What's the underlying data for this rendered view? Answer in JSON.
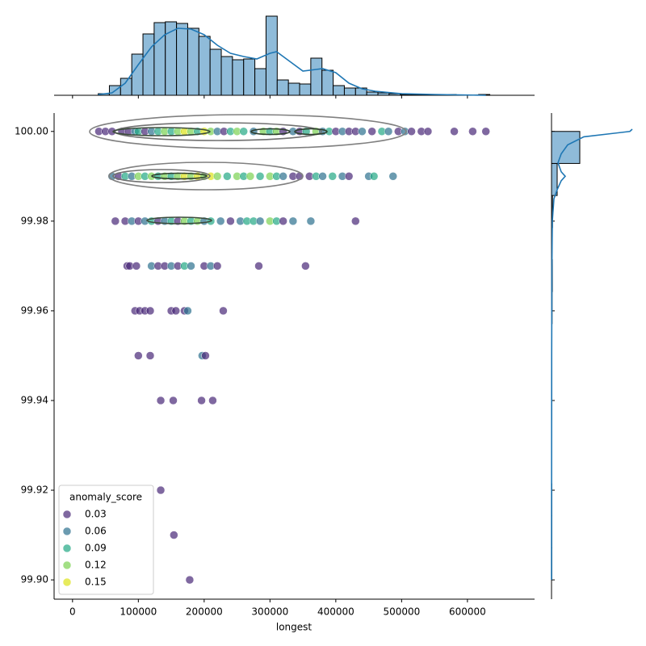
{
  "chart_data": [
    {
      "type": "scatter",
      "x_label": "longest",
      "xlim": [
        -28000,
        702000
      ],
      "xticks": [
        0,
        100000,
        200000,
        300000,
        400000,
        500000,
        600000
      ],
      "ylim": [
        99.8957,
        100.0041
      ],
      "yticks": [
        {
          "value": 99.9,
          "label": "99.90"
        },
        {
          "value": 99.92,
          "label": "99.92"
        },
        {
          "value": 99.94,
          "label": "99.94"
        },
        {
          "value": 99.96,
          "label": "99.96"
        },
        {
          "value": 99.98,
          "label": "99.98"
        },
        {
          "value": 100.0,
          "label": "100.00"
        }
      ],
      "legend": {
        "title": "anomaly_score",
        "corner": "lower left",
        "entries": [
          {
            "value": 0.03,
            "label": "0.03",
            "color": "#482878"
          },
          {
            "value": 0.06,
            "label": "0.06",
            "color": "#2c718e"
          },
          {
            "value": 0.09,
            "label": "0.09",
            "color": "#22a884"
          },
          {
            "value": 0.12,
            "label": "0.12",
            "color": "#7ad151"
          },
          {
            "value": 0.15,
            "label": "0.15",
            "color": "#dde318"
          }
        ]
      },
      "points": [
        [
          40000,
          100.0,
          0.02
        ],
        [
          50000,
          100.0,
          0.02
        ],
        [
          60000,
          100.0,
          0.03
        ],
        [
          75000,
          100.0,
          0.03
        ],
        [
          85000,
          100.0,
          0.02
        ],
        [
          95000,
          100.0,
          0.06
        ],
        [
          100000,
          100.0,
          0.09
        ],
        [
          110000,
          100.0,
          0.03
        ],
        [
          120000,
          100.0,
          0.06
        ],
        [
          130000,
          100.0,
          0.09
        ],
        [
          140000,
          100.0,
          0.12
        ],
        [
          150000,
          100.0,
          0.09
        ],
        [
          160000,
          100.0,
          0.12
        ],
        [
          170000,
          100.0,
          0.15
        ],
        [
          180000,
          100.0,
          0.12
        ],
        [
          190000,
          100.0,
          0.09
        ],
        [
          200000,
          100.0,
          0.15
        ],
        [
          210000,
          100.0,
          0.12
        ],
        [
          220000,
          100.0,
          0.06
        ],
        [
          230000,
          100.0,
          0.03
        ],
        [
          240000,
          100.0,
          0.09
        ],
        [
          250000,
          100.0,
          0.12
        ],
        [
          260000,
          100.0,
          0.09
        ],
        [
          275000,
          100.0,
          0.06
        ],
        [
          290000,
          100.0,
          0.12
        ],
        [
          300000,
          100.0,
          0.09
        ],
        [
          310000,
          100.0,
          0.12
        ],
        [
          320000,
          100.0,
          0.03
        ],
        [
          335000,
          100.0,
          0.06
        ],
        [
          345000,
          100.0,
          0.02
        ],
        [
          355000,
          100.0,
          0.09
        ],
        [
          370000,
          100.0,
          0.12
        ],
        [
          380000,
          100.0,
          0.06
        ],
        [
          390000,
          100.0,
          0.09
        ],
        [
          400000,
          100.0,
          0.03
        ],
        [
          410000,
          100.0,
          0.06
        ],
        [
          420000,
          100.0,
          0.02
        ],
        [
          430000,
          100.0,
          0.03
        ],
        [
          440000,
          100.0,
          0.06
        ],
        [
          455000,
          100.0,
          0.03
        ],
        [
          470000,
          100.0,
          0.09
        ],
        [
          480000,
          100.0,
          0.06
        ],
        [
          495000,
          100.0,
          0.03
        ],
        [
          505000,
          100.0,
          0.06
        ],
        [
          515000,
          100.0,
          0.03
        ],
        [
          530000,
          100.0,
          0.03
        ],
        [
          540000,
          100.0,
          0.03
        ],
        [
          580000,
          100.0,
          0.03
        ],
        [
          608000,
          100.0,
          0.03
        ],
        [
          628000,
          100.0,
          0.02
        ],
        [
          60000,
          99.99,
          0.06
        ],
        [
          70000,
          99.99,
          0.03
        ],
        [
          80000,
          99.99,
          0.09
        ],
        [
          90000,
          99.99,
          0.06
        ],
        [
          100000,
          99.99,
          0.12
        ],
        [
          110000,
          99.99,
          0.09
        ],
        [
          120000,
          99.99,
          0.12
        ],
        [
          130000,
          99.99,
          0.09
        ],
        [
          140000,
          99.99,
          0.12
        ],
        [
          150000,
          99.99,
          0.09
        ],
        [
          160000,
          99.99,
          0.12
        ],
        [
          170000,
          99.99,
          0.15
        ],
        [
          180000,
          99.99,
          0.12
        ],
        [
          190000,
          99.99,
          0.15
        ],
        [
          200000,
          99.99,
          0.12
        ],
        [
          210000,
          99.99,
          0.15
        ],
        [
          220000,
          99.99,
          0.12
        ],
        [
          235000,
          99.99,
          0.09
        ],
        [
          250000,
          99.99,
          0.12
        ],
        [
          260000,
          99.99,
          0.09
        ],
        [
          270000,
          99.99,
          0.12
        ],
        [
          285000,
          99.99,
          0.09
        ],
        [
          300000,
          99.99,
          0.12
        ],
        [
          310000,
          99.99,
          0.09
        ],
        [
          320000,
          99.99,
          0.06
        ],
        [
          335000,
          99.99,
          0.03
        ],
        [
          345000,
          99.99,
          0.02
        ],
        [
          360000,
          99.99,
          0.03
        ],
        [
          370000,
          99.99,
          0.09
        ],
        [
          380000,
          99.99,
          0.06
        ],
        [
          395000,
          99.99,
          0.09
        ],
        [
          410000,
          99.99,
          0.06
        ],
        [
          420000,
          99.99,
          0.03
        ],
        [
          450000,
          99.99,
          0.06
        ],
        [
          458000,
          99.99,
          0.09
        ],
        [
          487000,
          99.99,
          0.06
        ],
        [
          65000,
          99.98,
          0.03
        ],
        [
          80000,
          99.98,
          0.03
        ],
        [
          90000,
          99.98,
          0.06
        ],
        [
          100000,
          99.98,
          0.03
        ],
        [
          110000,
          99.98,
          0.06
        ],
        [
          120000,
          99.98,
          0.09
        ],
        [
          130000,
          99.98,
          0.03
        ],
        [
          140000,
          99.98,
          0.06
        ],
        [
          150000,
          99.98,
          0.09
        ],
        [
          160000,
          99.98,
          0.02
        ],
        [
          170000,
          99.98,
          0.12
        ],
        [
          180000,
          99.98,
          0.09
        ],
        [
          190000,
          99.98,
          0.12
        ],
        [
          200000,
          99.98,
          0.06
        ],
        [
          210000,
          99.98,
          0.09
        ],
        [
          225000,
          99.98,
          0.06
        ],
        [
          240000,
          99.98,
          0.03
        ],
        [
          255000,
          99.98,
          0.06
        ],
        [
          265000,
          99.98,
          0.09
        ],
        [
          275000,
          99.98,
          0.09
        ],
        [
          285000,
          99.98,
          0.06
        ],
        [
          300000,
          99.98,
          0.12
        ],
        [
          310000,
          99.98,
          0.09
        ],
        [
          320000,
          99.98,
          0.03
        ],
        [
          335000,
          99.98,
          0.06
        ],
        [
          362000,
          99.98,
          0.06
        ],
        [
          430000,
          99.98,
          0.03
        ],
        [
          83000,
          99.97,
          0.02
        ],
        [
          87000,
          99.97,
          0.03
        ],
        [
          97000,
          99.97,
          0.03
        ],
        [
          120000,
          99.97,
          0.06
        ],
        [
          130000,
          99.97,
          0.03
        ],
        [
          140000,
          99.97,
          0.03
        ],
        [
          150000,
          99.97,
          0.06
        ],
        [
          160000,
          99.97,
          0.03
        ],
        [
          170000,
          99.97,
          0.09
        ],
        [
          180000,
          99.97,
          0.06
        ],
        [
          200000,
          99.97,
          0.03
        ],
        [
          210000,
          99.97,
          0.06
        ],
        [
          220000,
          99.97,
          0.02
        ],
        [
          283000,
          99.97,
          0.03
        ],
        [
          354000,
          99.97,
          0.03
        ],
        [
          95000,
          99.96,
          0.03
        ],
        [
          102000,
          99.96,
          0.02
        ],
        [
          110000,
          99.96,
          0.03
        ],
        [
          118000,
          99.96,
          0.03
        ],
        [
          150000,
          99.96,
          0.03
        ],
        [
          157000,
          99.96,
          0.02
        ],
        [
          170000,
          99.96,
          0.03
        ],
        [
          175000,
          99.96,
          0.06
        ],
        [
          229000,
          99.96,
          0.03
        ],
        [
          100000,
          99.95,
          0.03
        ],
        [
          118000,
          99.95,
          0.03
        ],
        [
          197000,
          99.95,
          0.06
        ],
        [
          202000,
          99.95,
          0.03
        ],
        [
          134000,
          99.94,
          0.03
        ],
        [
          153000,
          99.94,
          0.03
        ],
        [
          196000,
          99.94,
          0.03
        ],
        [
          213000,
          99.94,
          0.03
        ],
        [
          134000,
          99.92,
          0.03
        ],
        [
          154000,
          99.91,
          0.03
        ],
        [
          178000,
          99.9,
          0.03
        ]
      ]
    },
    {
      "type": "histogram",
      "orientation": "vertical",
      "color": "#8fbbd9",
      "edgecolor": "#000000",
      "kde_color": "#1f77b4",
      "ylim": [
        0,
        110
      ],
      "bins": [
        39000,
        56000,
        73000,
        90000,
        107000,
        124000,
        141000,
        158000,
        175000,
        192000,
        209000,
        226000,
        243000,
        260000,
        277000,
        294000,
        311000,
        328000,
        345000,
        362000,
        379000,
        396000,
        413000,
        430000,
        447000,
        464000,
        481000,
        498000,
        515000,
        532000,
        549000,
        566000,
        583000,
        600000,
        617000,
        634000
      ],
      "counts": [
        2,
        12,
        21,
        51,
        76,
        90,
        91,
        89,
        83,
        73,
        57,
        48,
        44,
        45,
        33,
        98,
        19,
        15,
        14,
        46,
        31,
        12,
        9,
        9,
        4,
        3,
        2,
        1,
        1,
        1,
        0.5,
        1,
        0.5,
        0.5,
        1
      ],
      "kde": {
        "position": [
          39000,
          60000,
          80000,
          100000,
          120000,
          140000,
          160000,
          180000,
          200000,
          220000,
          240000,
          260000,
          280000,
          300000,
          310000,
          330000,
          350000,
          370000,
          380000,
          400000,
          420000,
          440000,
          460000,
          500000,
          550000,
          628000
        ],
        "density": [
          1,
          3,
          15,
          38,
          60,
          75,
          83,
          82,
          75,
          62,
          52,
          48,
          45,
          52,
          54,
          42,
          30,
          32,
          33,
          28,
          15,
          8,
          5,
          2,
          1,
          0
        ]
      }
    },
    {
      "type": "histogram",
      "orientation": "horizontal",
      "color": "#8fbbd9",
      "edgecolor": "#000000",
      "kde_color": "#1f77b4",
      "xlim": [
        0,
        100
      ],
      "bins": [
        99.9,
        99.90714,
        99.91429,
        99.92143,
        99.92857,
        99.93571,
        99.94286,
        99.95,
        99.95714,
        99.96429,
        99.97143,
        99.97857,
        99.98571,
        99.99286,
        100.0
      ],
      "counts": [
        0.3,
        0.3,
        0.3,
        0,
        0,
        0.3,
        0.3,
        0.5,
        0.7,
        1,
        0.5,
        1.2,
        7,
        35
      ],
      "kde": {
        "position": [
          99.9,
          99.95,
          99.97,
          99.98,
          99.985,
          99.987,
          99.989,
          99.99,
          99.991,
          99.993,
          99.995,
          99.997,
          99.9988,
          100.0,
          100.0005
        ],
        "density": [
          0,
          0.2,
          0.5,
          1,
          3,
          7,
          12,
          17,
          12,
          8,
          12,
          20,
          40,
          97,
          100
        ]
      }
    }
  ]
}
